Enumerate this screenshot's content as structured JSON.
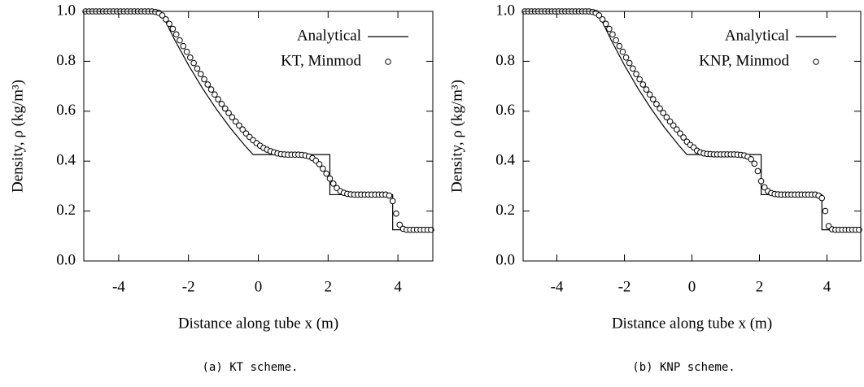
{
  "chart_data": [
    {
      "type": "line",
      "y_label": "Density, ρ (kg/m³)",
      "x_label": "Distance along tube x (m)",
      "caption": "(a) KT scheme.",
      "xlim": [
        -5,
        5
      ],
      "ylim": [
        0,
        1
      ],
      "xticks": [
        -4,
        -2,
        0,
        2,
        4
      ],
      "yticks": [
        {
          "value": 0,
          "label": "0.0"
        },
        0.2,
        0.4,
        0.6,
        0.8,
        {
          "value": 1,
          "label": "1.0"
        }
      ],
      "legend": "top-right",
      "series": [
        {
          "name": "Analytical",
          "color": "#000000",
          "style": "line",
          "x": [
            -5,
            -2.8,
            -2.4,
            -2.0,
            -1.6,
            -1.2,
            -0.8,
            -0.4,
            -0.15,
            2.05,
            2.05,
            3.85,
            3.85,
            5
          ],
          "values": [
            1,
            1,
            0.8871,
            0.7847,
            0.6919,
            0.6082,
            0.5327,
            0.465,
            0.4263,
            0.4263,
            0.2656,
            0.2656,
            0.125,
            0.125
          ]
        },
        {
          "name": "KT, Minmod",
          "color": "#000000",
          "style": "marker",
          "x": [
            -4.95,
            -4.85,
            -4.75,
            -4.65,
            -4.55,
            -4.45,
            -4.35,
            -4.25,
            -4.15,
            -4.05,
            -3.95,
            -3.85,
            -3.75,
            -3.65,
            -3.55,
            -3.45,
            -3.35,
            -3.25,
            -3.15,
            -3.05,
            -2.95,
            -2.85,
            -2.75,
            -2.65,
            -2.55,
            -2.45,
            -2.35,
            -2.25,
            -2.15,
            -2.05,
            -1.95,
            -1.85,
            -1.75,
            -1.65,
            -1.55,
            -1.45,
            -1.35,
            -1.25,
            -1.15,
            -1.05,
            -0.95,
            -0.85,
            -0.75,
            -0.65,
            -0.55,
            -0.45,
            -0.35,
            -0.25,
            -0.15,
            -0.05,
            0.05,
            0.15,
            0.25,
            0.35,
            0.45,
            0.55,
            0.65,
            0.75,
            0.85,
            0.95,
            1.05,
            1.15,
            1.25,
            1.35,
            1.45,
            1.55,
            1.65,
            1.75,
            1.85,
            1.95,
            2.05,
            2.15,
            2.25,
            2.35,
            2.45,
            2.55,
            2.65,
            2.75,
            2.85,
            2.95,
            3.05,
            3.15,
            3.25,
            3.35,
            3.45,
            3.55,
            3.65,
            3.75,
            3.85,
            3.95,
            4.05,
            4.15,
            4.25,
            4.35,
            4.45,
            4.55,
            4.65,
            4.75,
            4.85,
            4.95
          ],
          "values": [
            1,
            1,
            1,
            1,
            1,
            1,
            1,
            1,
            1,
            1,
            1,
            1,
            1,
            1,
            1,
            1,
            1,
            1,
            1,
            1,
            0.998,
            0.994,
            0.984,
            0.968,
            0.95,
            0.93,
            0.908,
            0.884,
            0.861,
            0.838,
            0.815,
            0.793,
            0.771,
            0.749,
            0.728,
            0.707,
            0.687,
            0.667,
            0.648,
            0.629,
            0.611,
            0.593,
            0.576,
            0.559,
            0.543,
            0.527,
            0.511,
            0.497,
            0.484,
            0.472,
            0.462,
            0.453,
            0.446,
            0.44,
            0.435,
            0.431,
            0.428,
            0.427,
            0.426,
            0.426,
            0.426,
            0.426,
            0.425,
            0.423,
            0.419,
            0.412,
            0.402,
            0.388,
            0.37,
            0.35,
            0.33,
            0.31,
            0.292,
            0.28,
            0.273,
            0.269,
            0.267,
            0.266,
            0.266,
            0.266,
            0.266,
            0.266,
            0.266,
            0.266,
            0.266,
            0.266,
            0.266,
            0.262,
            0.24,
            0.19,
            0.145,
            0.129,
            0.125,
            0.125,
            0.125,
            0.125,
            0.125,
            0.125,
            0.125,
            0.125
          ]
        }
      ]
    },
    {
      "type": "line",
      "y_label": "Density, ρ (kg/m³)",
      "x_label": "Distance along tube x (m)",
      "caption": "(b) KNP scheme.",
      "xlim": [
        -5,
        5
      ],
      "ylim": [
        0,
        1
      ],
      "xticks": [
        -4,
        -2,
        0,
        2,
        4
      ],
      "yticks": [
        {
          "value": 0,
          "label": "0.0"
        },
        0.2,
        0.4,
        0.6,
        0.8,
        {
          "value": 1,
          "label": "1.0"
        }
      ],
      "legend": "top-right",
      "series": [
        {
          "name": "Analytical",
          "color": "#000000",
          "style": "line",
          "x": [
            -5,
            -2.8,
            -2.4,
            -2.0,
            -1.6,
            -1.2,
            -0.8,
            -0.4,
            -0.15,
            2.05,
            2.05,
            3.85,
            3.85,
            5
          ],
          "values": [
            1,
            1,
            0.8871,
            0.7847,
            0.6919,
            0.6082,
            0.5327,
            0.465,
            0.4263,
            0.4263,
            0.2656,
            0.2656,
            0.125,
            0.125
          ]
        },
        {
          "name": "KNP, Minmod",
          "color": "#000000",
          "style": "marker",
          "x": [
            -4.95,
            -4.85,
            -4.75,
            -4.65,
            -4.55,
            -4.45,
            -4.35,
            -4.25,
            -4.15,
            -4.05,
            -3.95,
            -3.85,
            -3.75,
            -3.65,
            -3.55,
            -3.45,
            -3.35,
            -3.25,
            -3.15,
            -3.05,
            -2.95,
            -2.85,
            -2.75,
            -2.65,
            -2.55,
            -2.45,
            -2.35,
            -2.25,
            -2.15,
            -2.05,
            -1.95,
            -1.85,
            -1.75,
            -1.65,
            -1.55,
            -1.45,
            -1.35,
            -1.25,
            -1.15,
            -1.05,
            -0.95,
            -0.85,
            -0.75,
            -0.65,
            -0.55,
            -0.45,
            -0.35,
            -0.25,
            -0.15,
            -0.05,
            0.05,
            0.15,
            0.25,
            0.35,
            0.45,
            0.55,
            0.65,
            0.75,
            0.85,
            0.95,
            1.05,
            1.15,
            1.25,
            1.35,
            1.45,
            1.55,
            1.65,
            1.75,
            1.85,
            1.95,
            2.05,
            2.15,
            2.25,
            2.35,
            2.45,
            2.55,
            2.65,
            2.75,
            2.85,
            2.95,
            3.05,
            3.15,
            3.25,
            3.35,
            3.45,
            3.55,
            3.65,
            3.75,
            3.85,
            3.95,
            4.05,
            4.15,
            4.25,
            4.35,
            4.45,
            4.55,
            4.65,
            4.75,
            4.85,
            4.95
          ],
          "values": [
            1,
            1,
            1,
            1,
            1,
            1,
            1,
            1,
            1,
            1,
            1,
            1,
            1,
            1,
            1,
            1,
            1,
            1,
            1,
            1,
            0.998,
            0.994,
            0.984,
            0.968,
            0.95,
            0.93,
            0.908,
            0.884,
            0.861,
            0.838,
            0.815,
            0.793,
            0.771,
            0.749,
            0.728,
            0.707,
            0.687,
            0.667,
            0.648,
            0.629,
            0.611,
            0.593,
            0.576,
            0.559,
            0.543,
            0.527,
            0.511,
            0.495,
            0.478,
            0.465,
            0.455,
            0.442,
            0.435,
            0.431,
            0.429,
            0.428,
            0.427,
            0.427,
            0.427,
            0.427,
            0.427,
            0.427,
            0.427,
            0.426,
            0.425,
            0.423,
            0.418,
            0.408,
            0.39,
            0.36,
            0.32,
            0.295,
            0.28,
            0.272,
            0.268,
            0.267,
            0.266,
            0.266,
            0.266,
            0.266,
            0.266,
            0.266,
            0.266,
            0.266,
            0.266,
            0.266,
            0.266,
            0.262,
            0.252,
            0.2,
            0.14,
            0.127,
            0.125,
            0.125,
            0.125,
            0.125,
            0.125,
            0.125,
            0.125,
            0.125
          ]
        }
      ]
    }
  ]
}
